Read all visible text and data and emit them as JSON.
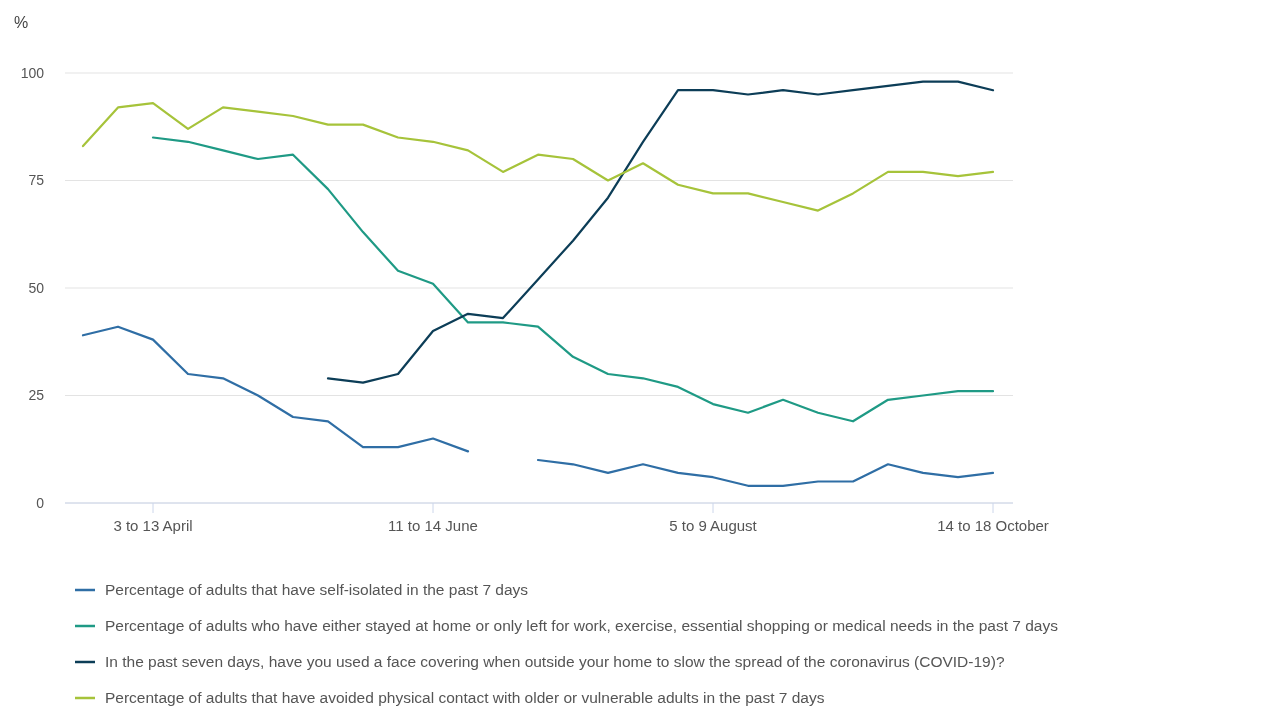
{
  "chart_data": {
    "type": "line",
    "ylabel": "%",
    "categories": [
      null,
      null,
      "3 to 13 April",
      null,
      null,
      null,
      null,
      null,
      null,
      null,
      "11 to 14 June",
      null,
      null,
      null,
      null,
      null,
      null,
      null,
      "5 to 9 August",
      null,
      null,
      null,
      null,
      null,
      null,
      null,
      "14 to 18 October"
    ],
    "series": [
      {
        "name": "Percentage of adults that have self-isolated in the past 7 days",
        "color": "#2f6ea5",
        "values": [
          39,
          41,
          38,
          30,
          29,
          25,
          20,
          19,
          13,
          13,
          15,
          12,
          null,
          10,
          9,
          7,
          9,
          7,
          6,
          4,
          4,
          5,
          5,
          9,
          7,
          6,
          7
        ]
      },
      {
        "name": "Percentage of adults who have either stayed at home or only left for work, exercise, essential shopping or medical needs in the past 7 days",
        "color": "#1f9a85",
        "values": [
          null,
          null,
          85,
          84,
          82,
          80,
          81,
          73,
          63,
          54,
          51,
          42,
          42,
          41,
          34,
          30,
          29,
          27,
          23,
          21,
          24,
          21,
          19,
          24,
          25,
          26,
          26
        ]
      },
      {
        "name": "In the past seven days, have you used a face covering when outside your home to slow the spread of the coronavirus (COVID-19)?",
        "color": "#0c3d57",
        "values": [
          null,
          null,
          null,
          null,
          null,
          null,
          null,
          29,
          28,
          30,
          40,
          44,
          43,
          52,
          61,
          71,
          84,
          96,
          96,
          95,
          96,
          95,
          96,
          97,
          98,
          98,
          96
        ]
      },
      {
        "name": "Percentage of adults that have avoided physical contact with older or vulnerable adults in the past 7 days",
        "color": "#a6c33a",
        "values": [
          83,
          92,
          93,
          87,
          92,
          91,
          90,
          88,
          88,
          85,
          84,
          82,
          77,
          81,
          80,
          75,
          79,
          74,
          72,
          72,
          70,
          68,
          72,
          77,
          77,
          76,
          77
        ]
      }
    ],
    "ylim": [
      0,
      100
    ],
    "yticks": [
      0,
      25,
      50,
      75,
      100
    ],
    "grid": "y",
    "legend": "bottom",
    "line_style": "solid",
    "marker": "none"
  }
}
